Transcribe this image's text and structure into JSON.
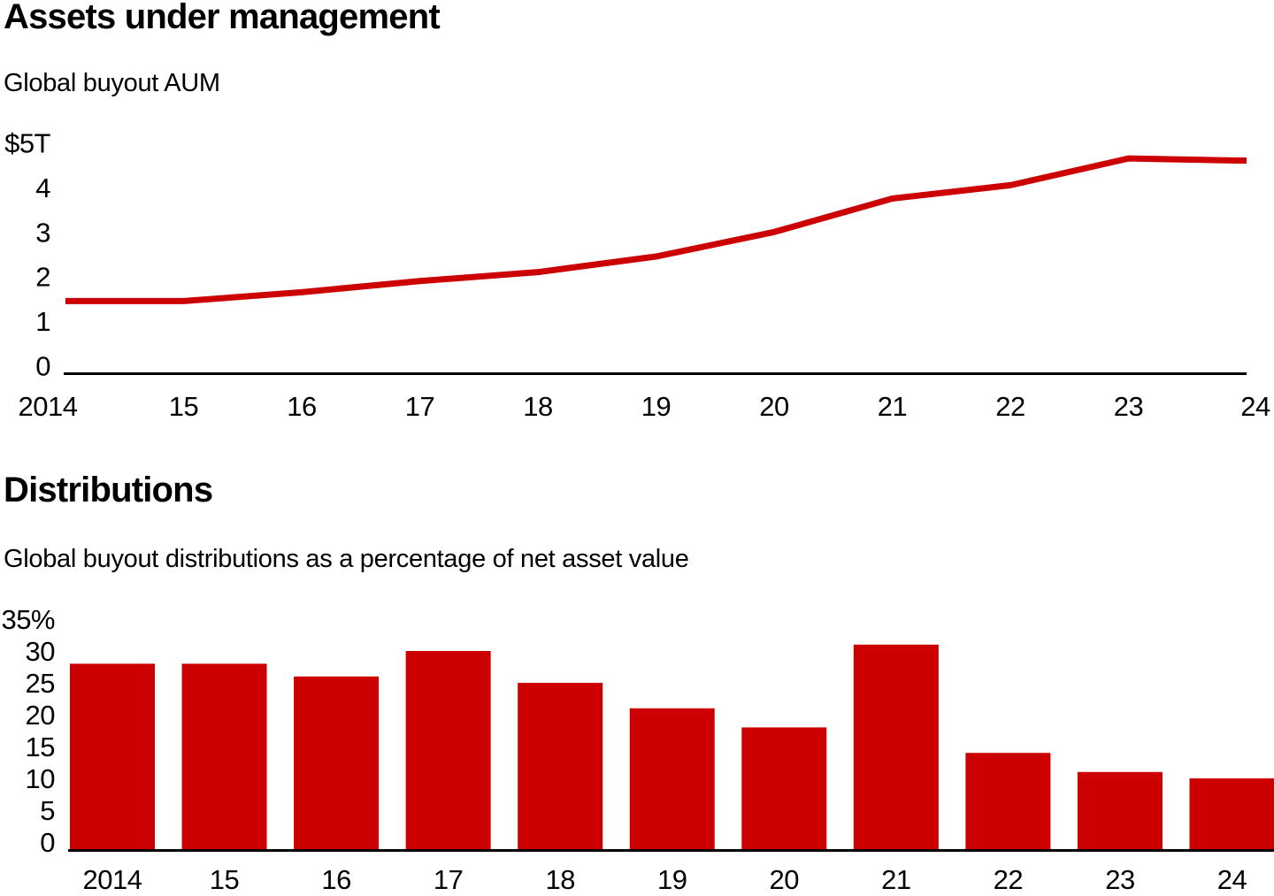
{
  "page": {
    "background": "#ffffff",
    "text_color": "#000000",
    "accent_color": "#cc0000"
  },
  "chart_data": [
    {
      "type": "line",
      "title": "Assets under management",
      "subtitle": "Global buyout AUM",
      "unit": "USD trillions",
      "x_labels": [
        "2014",
        "15",
        "16",
        "17",
        "18",
        "19",
        "20",
        "21",
        "22",
        "23",
        "24"
      ],
      "values": [
        1.45,
        1.45,
        1.65,
        1.9,
        2.1,
        2.45,
        3.0,
        3.75,
        4.05,
        4.65,
        4.6
      ],
      "y_ticks": [
        "$5T",
        "4",
        "3",
        "2",
        "1",
        "0"
      ],
      "y_tick_values": [
        5,
        4,
        3,
        2,
        1,
        0
      ],
      "ylim": [
        0,
        5
      ],
      "line_color": "#cc0000",
      "axis_color": "#000000",
      "grid": false,
      "legend": null
    },
    {
      "type": "bar",
      "title": "Distributions",
      "subtitle": "Global buyout distributions as a percentage of net asset value",
      "unit": "% of net asset value",
      "categories": [
        "2014",
        "15",
        "16",
        "17",
        "18",
        "19",
        "20",
        "21",
        "22",
        "23",
        "24"
      ],
      "values": [
        28,
        28,
        26,
        30,
        25,
        21,
        18,
        31,
        14,
        11,
        10
      ],
      "y_ticks": [
        "35%",
        "30",
        "25",
        "20",
        "15",
        "10",
        "5",
        "0"
      ],
      "y_tick_values": [
        35,
        30,
        25,
        20,
        15,
        10,
        5,
        0
      ],
      "ylim": [
        0,
        35
      ],
      "bar_color": "#cc0000",
      "axis_color": "#000000",
      "grid": false,
      "legend": null
    }
  ]
}
